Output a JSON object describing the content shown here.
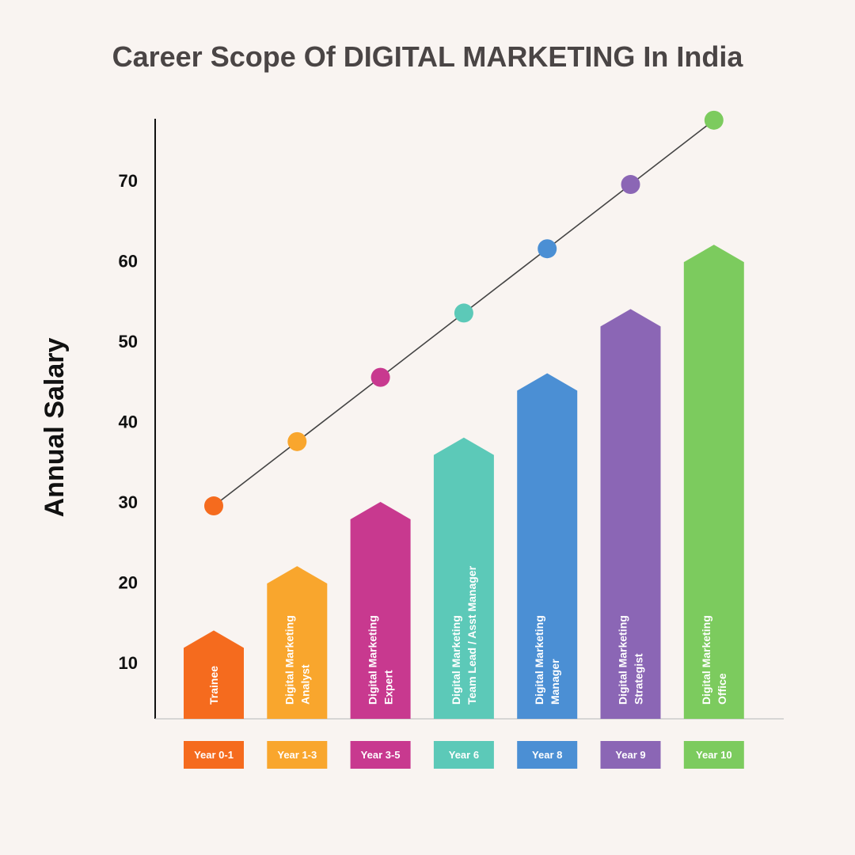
{
  "chart_data": {
    "type": "bar",
    "title": "Career Scope Of DIGITAL MARKETING In India",
    "ylabel": "Annual Salary",
    "xlabel": "",
    "yticks": [
      10,
      20,
      30,
      40,
      50,
      60,
      70
    ],
    "ylim": [
      3,
      80
    ],
    "grid": false,
    "legend": "none",
    "categories": [
      {
        "role_lines": [
          "Trainee"
        ],
        "year": "Year 0-1",
        "color": "#f56b1e",
        "bar_value": 14,
        "line_value": 29.5
      },
      {
        "role_lines": [
          "Digital Marketing",
          "Analyst"
        ],
        "year": "Year 1-3",
        "color": "#f9a62d",
        "bar_value": 22,
        "line_value": 37.5
      },
      {
        "role_lines": [
          "Digital Marketing",
          "Expert"
        ],
        "year": "Year 3-5",
        "color": "#c8398f",
        "bar_value": 30,
        "line_value": 45.5
      },
      {
        "role_lines": [
          "Digital Marketing",
          "Team Lead / Asst Manager"
        ],
        "year": "Year 6",
        "color": "#5cc9b8",
        "bar_value": 38,
        "line_value": 53.5
      },
      {
        "role_lines": [
          "Digital Marketing",
          "Manager"
        ],
        "year": "Year 8",
        "color": "#4b8fd4",
        "bar_value": 46,
        "line_value": 61.5
      },
      {
        "role_lines": [
          "Digital Marketing",
          "Strategist"
        ],
        "year": "Year 9",
        "color": "#8b66b5",
        "bar_value": 54,
        "line_value": 69.5
      },
      {
        "role_lines": [
          "Digital Marketing",
          "Office"
        ],
        "year": "Year 10",
        "color": "#7ccb5e",
        "bar_value": 62,
        "line_value": 77.5
      }
    ]
  }
}
